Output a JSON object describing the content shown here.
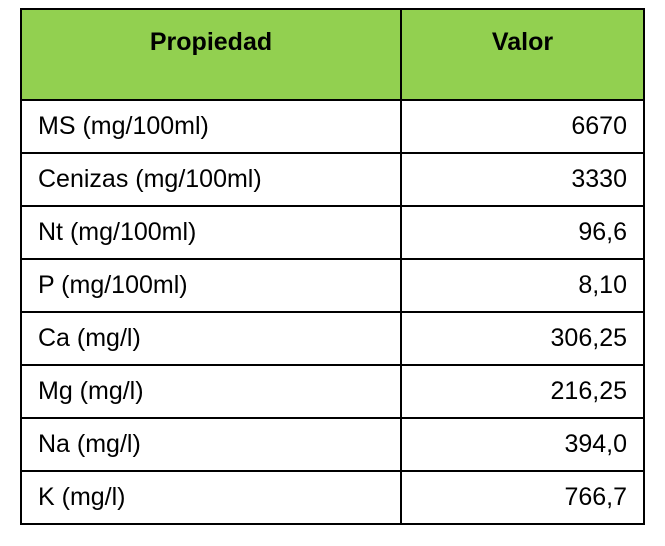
{
  "table": {
    "header": [
      "Propiedad",
      "Valor"
    ],
    "rows": [
      [
        "MS (mg/100ml)",
        "6670"
      ],
      [
        "Cenizas (mg/100ml)",
        "3330"
      ],
      [
        "Nt (mg/100ml)",
        "96,6"
      ],
      [
        "P (mg/100ml)",
        "8,10"
      ],
      [
        "Ca (mg/l)",
        "306,25"
      ],
      [
        "Mg (mg/l)",
        "216,25"
      ],
      [
        "Na (mg/l)",
        "394,0"
      ],
      [
        "K (mg/l)",
        "766,7"
      ]
    ]
  }
}
